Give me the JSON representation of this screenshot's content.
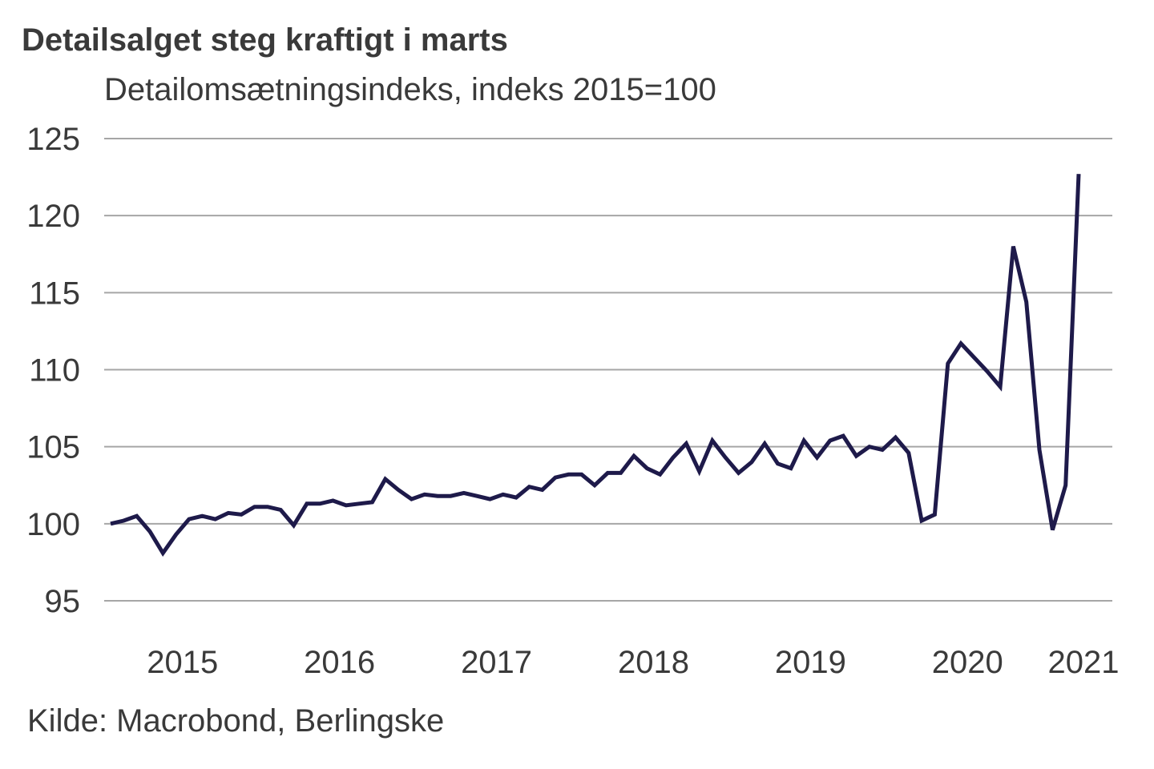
{
  "chart_data": {
    "type": "line",
    "title": "Detailsalget steg kraftigt i marts",
    "subtitle": "Detailomsætningsindeks, indeks 2015=100",
    "source": "Kilde: Macrobond, Berlingske",
    "xlabel": "",
    "ylabel": "",
    "ylim": [
      95,
      125
    ],
    "yticks": [
      95,
      100,
      105,
      110,
      115,
      120,
      125
    ],
    "ytick_labels": [
      "95",
      "100",
      "105",
      "110",
      "115",
      "120",
      "125"
    ],
    "xtick_labels": [
      "2015",
      "2016",
      "2017",
      "2018",
      "2019",
      "2020",
      "2021"
    ],
    "grid": true,
    "legend": "none",
    "line_color": "#1e1a4a",
    "series": [
      {
        "name": "Detailomsætningsindeks",
        "values": [
          100.0,
          100.2,
          100.5,
          99.5,
          98.1,
          99.3,
          100.3,
          100.5,
          100.3,
          100.7,
          100.6,
          101.1,
          101.1,
          100.9,
          99.9,
          101.3,
          101.3,
          101.5,
          101.2,
          101.3,
          101.4,
          102.9,
          102.2,
          101.6,
          101.9,
          101.8,
          101.8,
          102.0,
          101.8,
          101.6,
          101.9,
          101.7,
          102.4,
          102.2,
          103.0,
          103.2,
          103.2,
          102.5,
          103.3,
          103.3,
          104.4,
          103.6,
          103.2,
          104.3,
          105.2,
          103.4,
          105.4,
          104.3,
          103.3,
          104.0,
          105.2,
          103.9,
          103.6,
          105.4,
          104.3,
          105.4,
          105.7,
          104.4,
          105.0,
          104.8,
          105.6,
          104.6,
          100.2,
          100.6,
          110.4,
          111.7,
          110.8,
          109.9,
          108.9,
          118.0,
          114.4,
          104.8,
          99.6,
          102.5,
          122.7
        ]
      }
    ]
  }
}
